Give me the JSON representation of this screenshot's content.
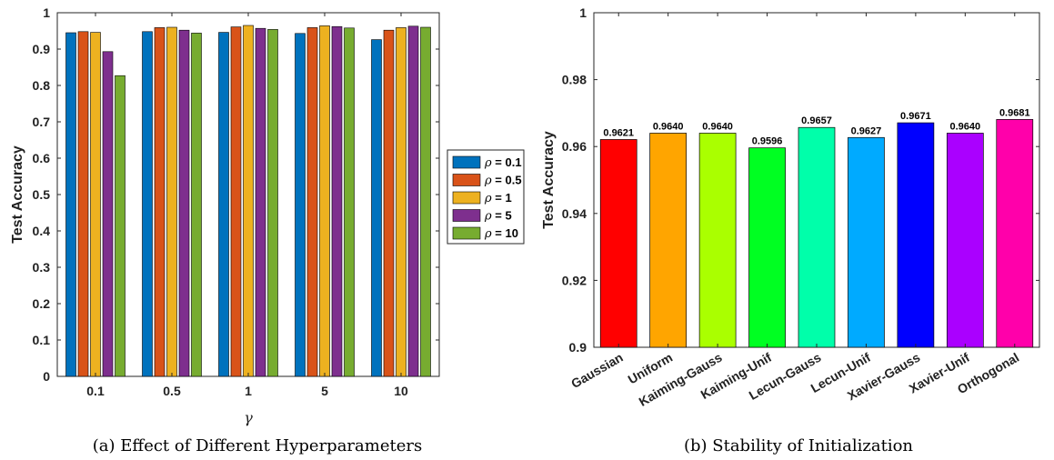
{
  "chart_data": [
    {
      "type": "bar",
      "caption": "(a) Effect of Different Hyperparameters",
      "xlabel": "γ",
      "ylabel": "Test Accuracy",
      "categories": [
        "0.1",
        "0.5",
        "1",
        "5",
        "10"
      ],
      "ylim": [
        0,
        1
      ],
      "yticks": [
        "0",
        "0.1",
        "0.2",
        "0.3",
        "0.4",
        "0.5",
        "0.6",
        "0.7",
        "0.8",
        "0.9",
        "1"
      ],
      "grid": false,
      "legend_position": "right",
      "legend_symbol": "ρ",
      "series": [
        {
          "name": " = 0.1",
          "color": "#0072BD",
          "values": [
            0.945,
            0.948,
            0.946,
            0.943,
            0.926
          ]
        },
        {
          "name": " = 0.5",
          "color": "#D95319",
          "values": [
            0.948,
            0.959,
            0.961,
            0.959,
            0.952
          ]
        },
        {
          "name": " = 1",
          "color": "#EDB120",
          "values": [
            0.946,
            0.96,
            0.965,
            0.964,
            0.959
          ]
        },
        {
          "name": " = 5",
          "color": "#7E2F8E",
          "values": [
            0.893,
            0.952,
            0.957,
            0.962,
            0.963
          ]
        },
        {
          "name": " = 10",
          "color": "#77AC30",
          "values": [
            0.827,
            0.944,
            0.954,
            0.958,
            0.96
          ]
        }
      ]
    },
    {
      "type": "bar",
      "caption": "(b) Stability of Initialization",
      "xlabel": "",
      "ylabel": "Test Accuracy",
      "categories": [
        "Gaussian",
        "Uniform",
        "Kaiming-Gauss",
        "Kaiming-Unif",
        "Lecun-Gauss",
        "Lecun-Unif",
        "Xavier-Gauss",
        "Xavier-Unif",
        "Orthogonal"
      ],
      "values": [
        0.9621,
        0.964,
        0.964,
        0.9596,
        0.9657,
        0.9627,
        0.9671,
        0.964,
        0.9681
      ],
      "value_labels": [
        "0.9621",
        "0.9640",
        "0.9640",
        "0.9596",
        "0.9657",
        "0.9627",
        "0.9671",
        "0.9640",
        "0.9681"
      ],
      "colors": [
        "#FF0000",
        "#FFA500",
        "#AAFF00",
        "#00FF22",
        "#00FFAA",
        "#00AAFF",
        "#0000FF",
        "#AA00FF",
        "#FF00AA"
      ],
      "ylim": [
        0.9,
        1
      ],
      "yticks": [
        "0.9",
        "0.92",
        "0.94",
        "0.96",
        "0.98",
        "1"
      ],
      "grid": false
    }
  ]
}
